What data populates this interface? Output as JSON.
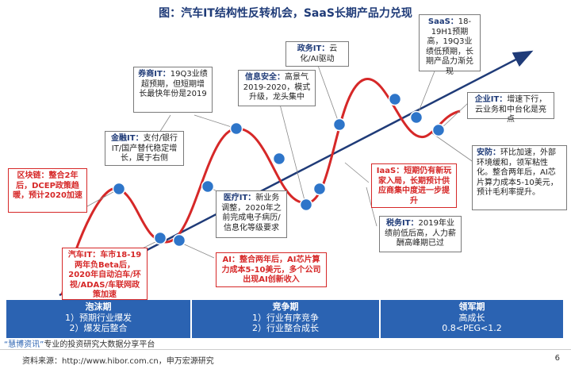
{
  "title": "图：汽车IT结构性反转机会，SaaS长期产品力兑现",
  "colors": {
    "curve": "#d62828",
    "trend": "#1f3b78",
    "node": "#2e75c9",
    "phase": "#2b63b2",
    "red_text": "#d62828"
  },
  "callouts": {
    "saas": {
      "label": "SaaS：",
      "text": "18-19H1预期高，19Q3业绩低预期，长期产品力渐兑现"
    },
    "zhengwu": {
      "label": "政务IT：",
      "text": "云化/AI驱动"
    },
    "quanshang": {
      "label": "券商IT：",
      "text": "19Q3业绩超预期，但短期增长最快年份是2019"
    },
    "xinxi": {
      "label": "信息安全：",
      "text": "高景气2019-2020，模式升级，龙头集中"
    },
    "qiye": {
      "label": "企业IT：",
      "text": "增速下行，云业务和中台化是亮点"
    },
    "jinrong": {
      "label": "金融IT：",
      "text": "支付/银行IT/国产替代稳定增长，属于右侧"
    },
    "anfang": {
      "label": "安防：",
      "text": "环比加速，外部环境缓和，领军粘性化。整合两年后，AI芯片算力成本5-10美元，预计毛利率提升。"
    },
    "qukuailian": {
      "text": "区块链：整合2年后，DCEP政策趋暖，预计2020加速"
    },
    "iaas": {
      "text": "IaaS：短期仍有新玩家入局，长期预计供应商集中度进一步提升"
    },
    "yiliao": {
      "label": "医疗IT：",
      "text": "新业务调整，2020年之前完成电子病历/信息化等级要求"
    },
    "shuiwu": {
      "label": "税务IT：",
      "text": "2019年业绩前低后高，人力薪酬高峰期已过"
    },
    "qiche": {
      "text": "汽车IT：车市18-19两年负Beta后，2020年自动泊车/环视/ADAS/车联网政策加速"
    },
    "ai": {
      "text": "AI：整合两年后，AI芯片算力成本5-10美元，多个公司出现AI创新收入"
    }
  },
  "phases": [
    {
      "title": "泡沫期",
      "line1": "1）预期行业爆发",
      "line2": "2）爆发后整合"
    },
    {
      "title": "竞争期",
      "line1": "1）行业有序竞争",
      "line2": "2）行业整合成长"
    },
    {
      "title": "领军期",
      "line1": "高成长",
      "line2": "0.8<PEG<1.2"
    }
  ],
  "footer": {
    "brand": "“慧博资讯”",
    "note": "专业的投资研究大数据分享平台",
    "source": "资料来源：http://www.hibor.com.cn，申万宏源研究",
    "page": "6"
  }
}
